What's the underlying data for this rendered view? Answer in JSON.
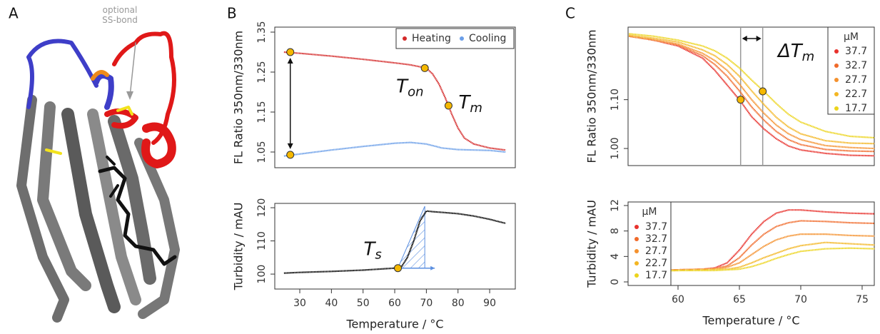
{
  "panel_labels": [
    "A",
    "B",
    "C"
  ],
  "structure_annotation": "optional SS-bond",
  "chart_data": [
    {
      "type": "line",
      "ylabel": "FL Ratio 350nm/330nm",
      "xlim": [
        22.1,
        98.1
      ],
      "ylim": [
        1.0107,
        1.3625
      ],
      "yticks": [
        1.05,
        1.15,
        1.25,
        1.35
      ],
      "series": [
        {
          "name": "Heating",
          "color": "#d42a2a",
          "x": [
            25,
            30,
            40,
            50,
            60,
            65,
            70,
            72,
            74,
            76,
            78,
            80,
            82,
            85,
            90,
            95
          ],
          "values": [
            1.3,
            1.297,
            1.29,
            1.282,
            1.273,
            1.268,
            1.26,
            1.245,
            1.22,
            1.185,
            1.145,
            1.11,
            1.085,
            1.07,
            1.06,
            1.055
          ]
        },
        {
          "name": "Cooling",
          "color": "#6a9ee8",
          "x": [
            25,
            30,
            40,
            50,
            60,
            65,
            70,
            75,
            80,
            90,
            95
          ],
          "values": [
            1.04,
            1.045,
            1.055,
            1.064,
            1.072,
            1.074,
            1.07,
            1.06,
            1.056,
            1.054,
            1.05
          ]
        }
      ],
      "markers": [
        {
          "x": 27,
          "y": 1.3
        },
        {
          "x": 69.5,
          "y": 1.26
        },
        {
          "x": 77,
          "y": 1.166
        },
        {
          "x": 27,
          "y": 1.043
        }
      ],
      "annotations": [
        {
          "text": "T",
          "sub": "on"
        },
        {
          "text": "T",
          "sub": "m"
        }
      ],
      "legend": "top-right"
    },
    {
      "type": "line",
      "ylabel": "Turbidity / mAU",
      "xlabel": "Temperature / °C",
      "xlim": [
        22.1,
        98.1
      ],
      "ylim": [
        95.5,
        121.3
      ],
      "yticks": [
        100,
        110,
        120
      ],
      "xticks": [
        30,
        40,
        50,
        60,
        70,
        80,
        90
      ],
      "series": [
        {
          "color": "#000000",
          "x": [
            25,
            30,
            40,
            50,
            55,
            60,
            62,
            64,
            66,
            68,
            70,
            72,
            75,
            80,
            85,
            90,
            95
          ],
          "values": [
            100.3,
            100.5,
            100.8,
            101.2,
            101.5,
            101.8,
            102,
            105,
            110,
            116,
            119,
            118.8,
            118.6,
            118.2,
            117.5,
            116.5,
            115.3
          ]
        }
      ],
      "markers": [
        {
          "x": 61,
          "y": 101.8
        }
      ],
      "shaded_span": [
        61,
        69.5
      ],
      "annotations": [
        {
          "text": "T",
          "sub": "s"
        }
      ]
    },
    {
      "type": "line",
      "ylabel": "FL Ratio 350nm/330nm",
      "xlim": [
        55.93,
        75.99
      ],
      "ylim": [
        0.965,
        1.2486
      ],
      "yticks": [
        {
          "value": 1,
          "label": "1.00"
        },
        {
          "value": 1.1,
          "label": "1.10"
        }
      ],
      "legend_title": "μM",
      "legend": "top-right",
      "vlines": [
        65.1,
        66.9
      ],
      "series": [
        {
          "name": "37.7",
          "color": "#e8322d",
          "x": [
            56,
            58,
            60,
            62,
            63,
            64,
            65,
            66,
            67,
            68,
            69,
            70,
            72,
            74,
            76
          ],
          "values": [
            1.23,
            1.222,
            1.21,
            1.185,
            1.16,
            1.13,
            1.1,
            1.065,
            1.04,
            1.02,
            1.005,
            0.997,
            0.99,
            0.986,
            0.985
          ]
        },
        {
          "name": "32.7",
          "color": "#f06a2a",
          "x": [
            56,
            58,
            60,
            62,
            63,
            64,
            65,
            66,
            67,
            68,
            69,
            70,
            72,
            74,
            76
          ],
          "values": [
            1.23,
            1.222,
            1.212,
            1.19,
            1.172,
            1.148,
            1.118,
            1.085,
            1.058,
            1.035,
            1.018,
            1.008,
            0.998,
            0.995,
            0.994
          ]
        },
        {
          "name": "27.7",
          "color": "#f4912e",
          "x": [
            56,
            58,
            60,
            62,
            63,
            64,
            65,
            66,
            67,
            68,
            69,
            70,
            72,
            74,
            76
          ],
          "values": [
            1.23,
            1.223,
            1.214,
            1.195,
            1.18,
            1.16,
            1.132,
            1.1,
            1.072,
            1.048,
            1.03,
            1.018,
            1.006,
            1.002,
            1.0
          ]
        },
        {
          "name": "22.7",
          "color": "#f3b623",
          "x": [
            56,
            58,
            60,
            62,
            63,
            64,
            65,
            66,
            67,
            68,
            69,
            70,
            72,
            74,
            76
          ],
          "values": [
            1.232,
            1.226,
            1.218,
            1.202,
            1.19,
            1.172,
            1.148,
            1.118,
            1.09,
            1.064,
            1.044,
            1.03,
            1.016,
            1.011,
            1.01
          ]
        },
        {
          "name": "17.7",
          "color": "#ecd41c",
          "x": [
            56,
            58,
            60,
            62,
            63,
            64,
            65,
            66,
            67,
            68,
            69,
            70,
            72,
            74,
            76
          ],
          "values": [
            1.235,
            1.23,
            1.222,
            1.21,
            1.2,
            1.185,
            1.165,
            1.14,
            1.117,
            1.092,
            1.07,
            1.054,
            1.035,
            1.025,
            1.022
          ]
        }
      ],
      "markers": [
        {
          "x": 65.1,
          "y": 1.1
        },
        {
          "x": 66.9,
          "y": 1.117
        }
      ],
      "annotations": [
        {
          "text": "ΔT",
          "sub": "m"
        }
      ]
    },
    {
      "type": "line",
      "ylabel": "Turbidity / mAU",
      "xlabel": "Temperature / °C",
      "xlim": [
        55.93,
        75.99
      ],
      "ylim": [
        -0.56,
        12.56
      ],
      "yticks": [
        0,
        4,
        8,
        12
      ],
      "xticks": [
        60,
        65,
        70,
        75
      ],
      "legend_title": "μM",
      "legend": "top-left",
      "series": [
        {
          "name": "37.7",
          "color": "#e8322d",
          "x": [
            56,
            58,
            60,
            62,
            63,
            64,
            65,
            66,
            67,
            68,
            69,
            70,
            72,
            74,
            76
          ],
          "values": [
            1.8,
            1.8,
            1.9,
            2,
            2.2,
            3,
            5,
            7.5,
            9.5,
            10.8,
            11.3,
            11.3,
            11,
            10.8,
            10.7
          ]
        },
        {
          "name": "32.7",
          "color": "#f06a2a",
          "x": [
            56,
            58,
            60,
            62,
            63,
            64,
            65,
            66,
            67,
            68,
            69,
            70,
            72,
            74,
            76
          ],
          "values": [
            1.8,
            1.8,
            1.9,
            2,
            2.1,
            2.5,
            3.8,
            5.8,
            7.5,
            8.7,
            9.3,
            9.6,
            9.5,
            9.3,
            9.2
          ]
        },
        {
          "name": "27.7",
          "color": "#f4912e",
          "x": [
            56,
            58,
            60,
            62,
            63,
            64,
            65,
            66,
            67,
            68,
            69,
            70,
            72,
            74,
            76
          ],
          "values": [
            1.8,
            1.8,
            1.9,
            2,
            2,
            2.3,
            3,
            4.3,
            5.6,
            6.6,
            7.2,
            7.5,
            7.5,
            7.3,
            7.2
          ]
        },
        {
          "name": "22.7",
          "color": "#f3b623",
          "x": [
            56,
            58,
            60,
            62,
            63,
            64,
            65,
            66,
            67,
            68,
            69,
            70,
            72,
            74,
            76
          ],
          "values": [
            1.8,
            1.8,
            1.8,
            1.9,
            2,
            2,
            2.3,
            3,
            3.8,
            4.5,
            5.2,
            5.7,
            6.2,
            6,
            5.8
          ]
        },
        {
          "name": "17.7",
          "color": "#ecd41c",
          "x": [
            56,
            58,
            60,
            62,
            63,
            64,
            65,
            66,
            67,
            68,
            69,
            70,
            72,
            74,
            76
          ],
          "values": [
            1.7,
            1.7,
            1.8,
            1.8,
            1.8,
            1.9,
            2,
            2.4,
            3,
            3.7,
            4.3,
            4.8,
            5.2,
            5.3,
            5.2
          ]
        }
      ]
    }
  ]
}
